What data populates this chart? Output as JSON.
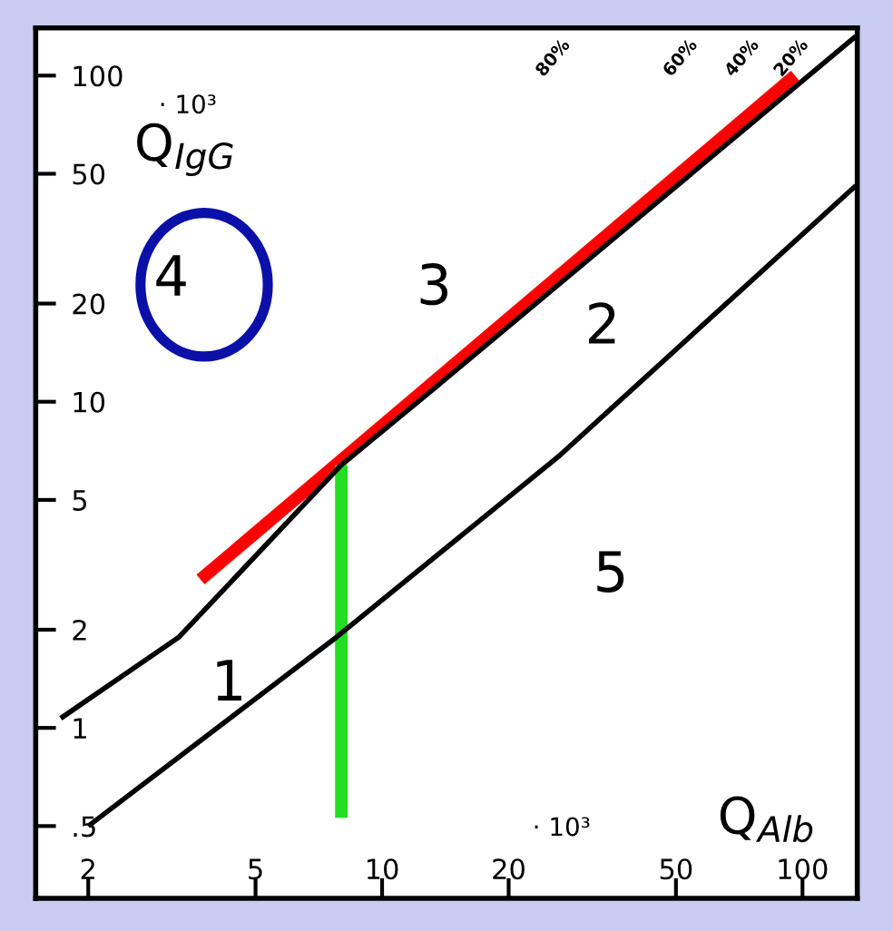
{
  "chart_data": {
    "type": "line",
    "xlabel": "Q$_{Alb}$",
    "ylabel": "Q$_{IgG}$",
    "log": "xy",
    "grid": false,
    "marker": "none",
    "xlim": [
      1.5,
      135
    ],
    "ylim": [
      0.3,
      140
    ],
    "xticks": [
      2,
      5,
      10,
      20,
      50,
      100
    ],
    "yticks": [
      {
        "value": 0.5,
        "label": ".5"
      },
      1,
      2,
      5,
      10,
      20,
      50,
      100
    ],
    "series": [
      {
        "color": "#000000",
        "x": [
          1.72,
          3.29,
          8.0,
          13.2,
          134
        ],
        "values": [
          1.07,
          1.9,
          6.4,
          10.9,
          132
        ]
      },
      {
        "color": "#000000",
        "x": [
          2,
          7.8,
          26.3,
          134
        ],
        "values": [
          0.5,
          1.9,
          6.8,
          46
        ]
      },
      {
        "color": "#ff0000",
        "x": [
          3.7,
          96
        ],
        "values": [
          2.85,
          100
        ]
      },
      {
        "color": "#22dd22",
        "x": [
          8.0,
          8.0
        ],
        "values": [
          6.4,
          0.53
        ]
      }
    ],
    "annotations": [
      "1",
      "2",
      "3",
      "4",
      "5",
      "80%",
      "60%",
      "40%",
      "20%",
      "· 10³",
      "· 10³"
    ]
  }
}
